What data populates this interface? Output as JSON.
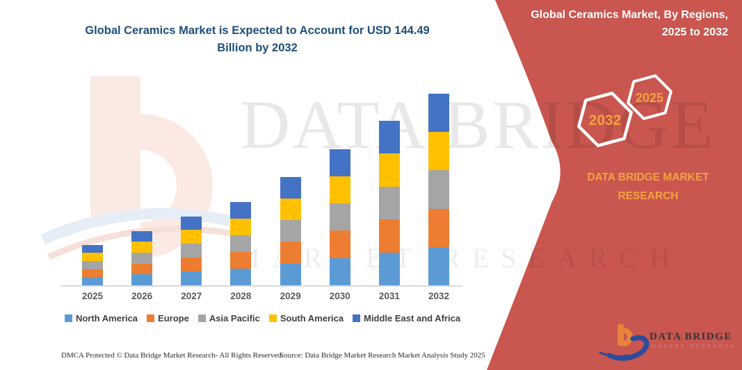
{
  "title": "Global Ceramics Market is Expected to Account for USD 144.49 Billion by 2032",
  "side_panel": {
    "bg_color": "#C9564F",
    "accent_color": "#F3A33C",
    "heading_line1": "Global Ceramics Market, By Regions,",
    "heading_line2": "2025 to 2032",
    "hexagon_back_year": "2032",
    "hexagon_front_year": "2025",
    "brand_line1": "DATA BRIDGE MARKET",
    "brand_line2": "RESEARCH"
  },
  "chart_data": {
    "type": "bar",
    "stacked": true,
    "title": "Global Ceramics Market is Expected to Account for USD 144.49 Billion by 2032",
    "unit": "USD Billion",
    "categories": [
      "2025",
      "2026",
      "2027",
      "2028",
      "2029",
      "2030",
      "2031",
      "2032"
    ],
    "series": [
      {
        "name": "North America",
        "color": "#5B9BD5",
        "values": [
          6.1,
          8.2,
          10.4,
          12.6,
          16.4,
          20.6,
          24.8,
          28.9
        ]
      },
      {
        "name": "Europe",
        "color": "#ED7D31",
        "values": [
          6.1,
          8.2,
          10.4,
          12.6,
          16.4,
          20.6,
          24.8,
          28.9
        ]
      },
      {
        "name": "Asia Pacific",
        "color": "#A5A5A5",
        "values": [
          6.1,
          8.2,
          10.4,
          12.6,
          16.4,
          20.6,
          24.8,
          28.9
        ]
      },
      {
        "name": "South America",
        "color": "#FFC000",
        "values": [
          6.1,
          8.2,
          10.4,
          12.6,
          16.4,
          20.6,
          24.8,
          28.9
        ]
      },
      {
        "name": "Middle East and Africa",
        "color": "#4472C4",
        "values": [
          6.1,
          8.2,
          10.4,
          12.6,
          16.4,
          20.6,
          24.8,
          28.9
        ]
      }
    ],
    "totals_estimated": [
      30.5,
      41.0,
      52.0,
      63.0,
      82.0,
      103.0,
      124.0,
      144.49
    ],
    "ylim": [
      0,
      150
    ],
    "grid": false,
    "y_axis_shown": false,
    "legend_position": "bottom"
  },
  "watermark": {
    "line1": "DATA BRIDGE",
    "line2": "MARKET RESEARCH"
  },
  "footer": {
    "dmca": "DMCA Protected © Data Bridge Market Research-  All Rights Reserved.",
    "source": "Source: Data Bridge Market Research  Market Analysis Study 2025"
  },
  "logo": {
    "name": "DATA BRIDGE",
    "tagline": "MARKET RESEARCH"
  }
}
